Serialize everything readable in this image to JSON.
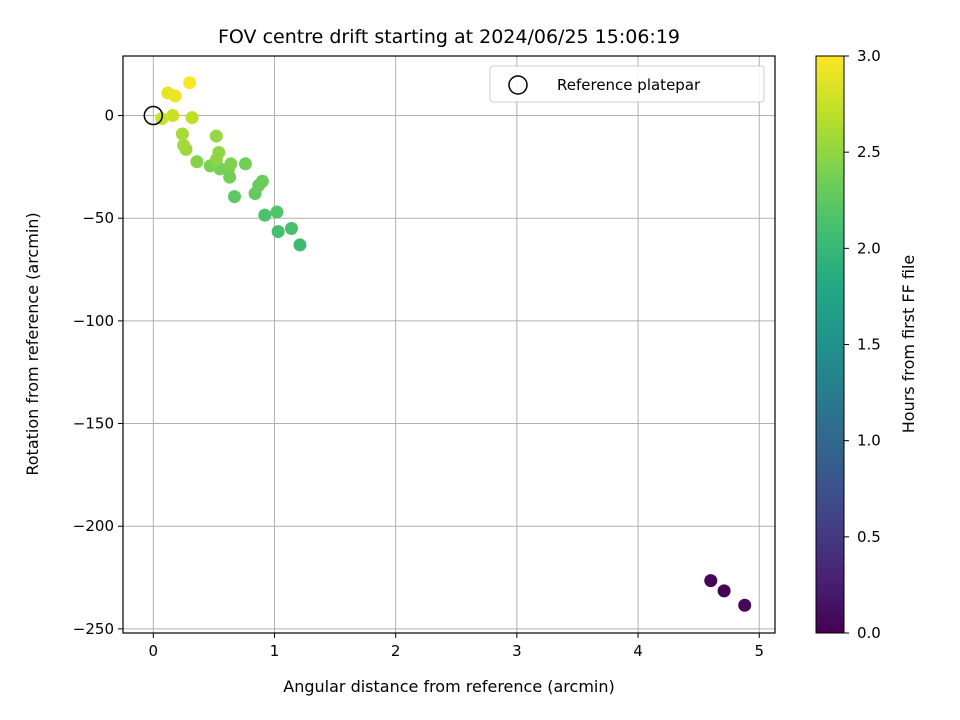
{
  "chart_data": {
    "type": "scatter",
    "title": "FOV centre drift starting at 2024/06/25 15:06:19",
    "xlabel": "Angular distance from reference (arcmin)",
    "ylabel": "Rotation from reference (arcmin)",
    "xlim": [
      -0.25,
      5.13
    ],
    "ylim": [
      -252,
      29
    ],
    "xticks": [
      0,
      1,
      2,
      3,
      4,
      5
    ],
    "yticks": [
      0,
      -50,
      -100,
      -150,
      -200,
      -250
    ],
    "xtick_labels": [
      "0",
      "1",
      "2",
      "3",
      "4",
      "5"
    ],
    "ytick_labels": [
      "0",
      "−50",
      "−100",
      "−150",
      "−200",
      "−250"
    ],
    "grid": true,
    "legend": {
      "position": "top-right",
      "entries": [
        "Reference platepar"
      ]
    },
    "reference_point": {
      "x": 0,
      "y": 0
    },
    "colorbar": {
      "label": "Hours from first FF file",
      "colormap": "viridis",
      "range": [
        0.0,
        3.0
      ],
      "ticks": [
        0.0,
        0.5,
        1.0,
        1.5,
        2.0,
        2.5,
        3.0
      ],
      "tick_labels": [
        "0.0",
        "0.5",
        "1.0",
        "1.5",
        "2.0",
        "2.5",
        "3.0"
      ]
    },
    "points": [
      {
        "x": 4.6,
        "y": -226.5,
        "c": 0.02
      },
      {
        "x": 4.71,
        "y": -231.5,
        "c": 0.03
      },
      {
        "x": 4.88,
        "y": -238.5,
        "c": 0.05
      },
      {
        "x": 1.21,
        "y": -63.0,
        "c": 2.05
      },
      {
        "x": 1.03,
        "y": -56.5,
        "c": 2.1
      },
      {
        "x": 1.14,
        "y": -55.0,
        "c": 2.12
      },
      {
        "x": 0.92,
        "y": -48.5,
        "c": 2.15
      },
      {
        "x": 1.02,
        "y": -47.0,
        "c": 2.18
      },
      {
        "x": 0.67,
        "y": -39.5,
        "c": 2.25
      },
      {
        "x": 0.84,
        "y": -38.0,
        "c": 2.27
      },
      {
        "x": 0.87,
        "y": -34.0,
        "c": 2.3
      },
      {
        "x": 0.9,
        "y": -32.0,
        "c": 2.3
      },
      {
        "x": 0.63,
        "y": -30.0,
        "c": 2.35
      },
      {
        "x": 0.55,
        "y": -26.0,
        "c": 2.37
      },
      {
        "x": 0.47,
        "y": -24.5,
        "c": 2.4
      },
      {
        "x": 0.62,
        "y": -26.0,
        "c": 2.38
      },
      {
        "x": 0.64,
        "y": -23.5,
        "c": 2.42
      },
      {
        "x": 0.76,
        "y": -23.5,
        "c": 2.35
      },
      {
        "x": 0.36,
        "y": -22.5,
        "c": 2.45
      },
      {
        "x": 0.52,
        "y": -21.5,
        "c": 2.48
      },
      {
        "x": 0.54,
        "y": -18.0,
        "c": 2.5
      },
      {
        "x": 0.27,
        "y": -16.5,
        "c": 2.55
      },
      {
        "x": 0.25,
        "y": -14.5,
        "c": 2.57
      },
      {
        "x": 0.52,
        "y": -10.0,
        "c": 2.52
      },
      {
        "x": 0.24,
        "y": -9.0,
        "c": 2.6
      },
      {
        "x": 0.32,
        "y": -1.0,
        "c": 2.7
      },
      {
        "x": 0.07,
        "y": -1.5,
        "c": 2.75
      },
      {
        "x": 0.16,
        "y": 0.0,
        "c": 2.77
      },
      {
        "x": 0.12,
        "y": 11.0,
        "c": 2.9
      },
      {
        "x": 0.18,
        "y": 9.5,
        "c": 2.92
      },
      {
        "x": 0.3,
        "y": 16.0,
        "c": 2.98
      }
    ]
  }
}
